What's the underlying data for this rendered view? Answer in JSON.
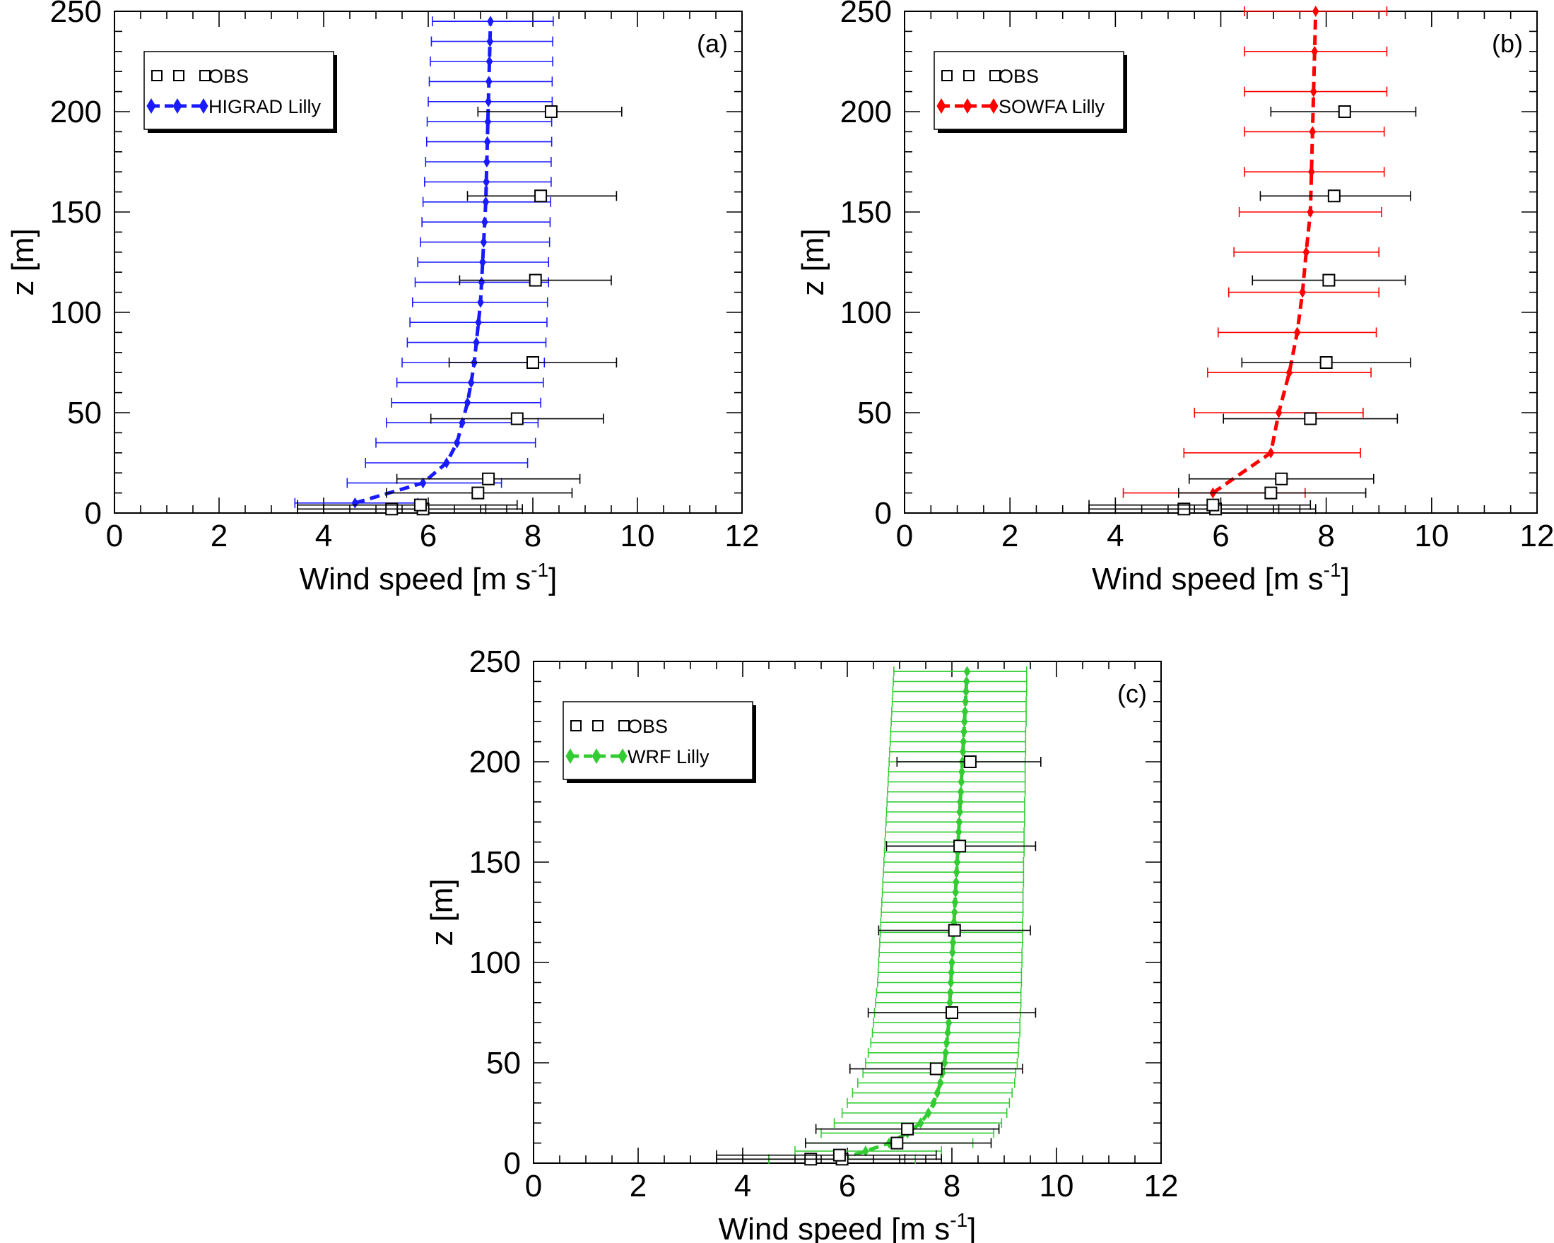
{
  "chart_data": [
    {
      "type": "line",
      "panel_label": "(a)",
      "xlabel": "Wind speed [m s",
      "xlabel_superscript": "-1",
      "xlabel_suffix": "]",
      "ylabel": "z [m]",
      "xlim": [
        0,
        12
      ],
      "ylim": [
        0,
        250
      ],
      "xticks": [
        "0",
        "2",
        "4",
        "6",
        "8",
        "10",
        "12"
      ],
      "yticks": [
        "0",
        "50",
        "100",
        "150",
        "200",
        "250"
      ],
      "grid": false,
      "legend_position": "top-left",
      "model_color": "#1a1aff",
      "obs": {
        "name": "OBS",
        "points": [
          [
            5.3,
            2,
            3.5,
            7.1
          ],
          [
            5.9,
            2,
            4.0,
            7.8
          ],
          [
            5.85,
            4,
            3.5,
            7.7
          ],
          [
            6.95,
            10,
            5.2,
            8.75
          ],
          [
            7.15,
            17,
            5.4,
            8.9
          ],
          [
            7.7,
            47,
            6.05,
            9.35
          ],
          [
            8.0,
            75,
            6.4,
            9.6
          ],
          [
            8.05,
            116,
            6.6,
            9.5
          ],
          [
            8.15,
            158,
            6.75,
            9.6
          ],
          [
            8.35,
            200,
            6.95,
            9.7
          ]
        ]
      },
      "model": {
        "name": "HIGRAD Lilly",
        "points": [
          [
            4.6,
            5,
            3.45,
            5.8
          ],
          [
            5.9,
            15,
            4.45,
            7.4
          ],
          [
            6.35,
            25,
            4.8,
            7.9
          ],
          [
            6.55,
            35,
            5.0,
            8.05
          ],
          [
            6.65,
            45,
            5.2,
            8.1
          ],
          [
            6.75,
            55,
            5.3,
            8.15
          ],
          [
            6.82,
            65,
            5.4,
            8.2
          ],
          [
            6.88,
            75,
            5.5,
            8.22
          ],
          [
            6.92,
            85,
            5.6,
            8.25
          ],
          [
            6.96,
            95,
            5.65,
            8.27
          ],
          [
            7.0,
            105,
            5.7,
            8.28
          ],
          [
            7.02,
            115,
            5.75,
            8.3
          ],
          [
            7.04,
            125,
            5.8,
            8.3
          ],
          [
            7.06,
            135,
            5.85,
            8.32
          ],
          [
            7.08,
            145,
            5.88,
            8.33
          ],
          [
            7.1,
            155,
            5.9,
            8.34
          ],
          [
            7.11,
            165,
            5.93,
            8.35
          ],
          [
            7.12,
            175,
            5.95,
            8.35
          ],
          [
            7.13,
            185,
            5.97,
            8.36
          ],
          [
            7.14,
            195,
            5.98,
            8.36
          ],
          [
            7.15,
            205,
            6.0,
            8.37
          ],
          [
            7.16,
            215,
            6.02,
            8.37
          ],
          [
            7.17,
            225,
            6.04,
            8.38
          ],
          [
            7.18,
            235,
            6.06,
            8.38
          ],
          [
            7.19,
            245,
            6.08,
            8.39
          ]
        ]
      }
    },
    {
      "type": "line",
      "panel_label": "(b)",
      "xlabel": "Wind speed [m s",
      "xlabel_superscript": "-1",
      "xlabel_suffix": "]",
      "ylabel": "z [m]",
      "xlim": [
        0,
        12
      ],
      "ylim": [
        0,
        250
      ],
      "xticks": [
        "0",
        "2",
        "4",
        "6",
        "8",
        "10",
        "12"
      ],
      "yticks": [
        "0",
        "50",
        "100",
        "150",
        "200",
        "250"
      ],
      "grid": false,
      "legend_position": "top-left",
      "model_color": "#ff0000",
      "obs": {
        "name": "OBS",
        "points": [
          [
            5.3,
            2,
            3.5,
            7.1
          ],
          [
            5.9,
            2,
            4.0,
            7.8
          ],
          [
            5.85,
            4,
            3.5,
            7.7
          ],
          [
            6.95,
            10,
            5.2,
            8.75
          ],
          [
            7.15,
            17,
            5.4,
            8.9
          ],
          [
            7.7,
            47,
            6.05,
            9.35
          ],
          [
            8.0,
            75,
            6.4,
            9.6
          ],
          [
            8.05,
            116,
            6.6,
            9.5
          ],
          [
            8.15,
            158,
            6.75,
            9.6
          ],
          [
            8.35,
            200,
            6.95,
            9.7
          ]
        ]
      },
      "model": {
        "name": "SOWFA Lilly",
        "points": [
          [
            5.85,
            10,
            4.15,
            7.6
          ],
          [
            6.95,
            30,
            5.3,
            8.65
          ],
          [
            7.1,
            50,
            5.5,
            8.7
          ],
          [
            7.3,
            70,
            5.75,
            8.85
          ],
          [
            7.45,
            90,
            5.95,
            8.95
          ],
          [
            7.55,
            110,
            6.15,
            9.0
          ],
          [
            7.62,
            130,
            6.25,
            9.0
          ],
          [
            7.7,
            150,
            6.35,
            9.05
          ],
          [
            7.72,
            170,
            6.45,
            9.1
          ],
          [
            7.74,
            190,
            6.45,
            9.1
          ],
          [
            7.76,
            210,
            6.45,
            9.15
          ],
          [
            7.78,
            230,
            6.45,
            9.15
          ],
          [
            7.8,
            250,
            6.45,
            9.15
          ]
        ]
      }
    },
    {
      "type": "line",
      "panel_label": "(c)",
      "xlabel": "Wind speed [m s",
      "xlabel_superscript": "-1",
      "xlabel_suffix": "]",
      "ylabel": "z [m]",
      "xlim": [
        0,
        12
      ],
      "ylim": [
        0,
        250
      ],
      "xticks": [
        "0",
        "2",
        "4",
        "6",
        "8",
        "10",
        "12"
      ],
      "yticks": [
        "0",
        "50",
        "100",
        "150",
        "200",
        "250"
      ],
      "grid": false,
      "legend_position": "top-left",
      "model_color": "#33cc33",
      "obs": {
        "name": "OBS",
        "points": [
          [
            5.3,
            2,
            3.5,
            7.1
          ],
          [
            5.9,
            2,
            4.0,
            7.8
          ],
          [
            5.85,
            4,
            3.5,
            7.7
          ],
          [
            6.95,
            10,
            5.2,
            8.75
          ],
          [
            7.15,
            17,
            5.4,
            8.9
          ],
          [
            7.7,
            47,
            6.05,
            9.35
          ],
          [
            8.0,
            75,
            6.4,
            9.6
          ],
          [
            8.05,
            116,
            6.6,
            9.5
          ],
          [
            8.15,
            158,
            6.75,
            9.6
          ],
          [
            8.35,
            200,
            6.95,
            9.7
          ]
        ]
      },
      "model": {
        "name": "WRF Lilly",
        "points": [
          [
            5.85,
            2,
            4.5,
            7.3
          ],
          [
            6.35,
            6,
            5.0,
            7.8
          ],
          [
            6.8,
            10,
            5.2,
            8.4
          ],
          [
            7.15,
            15,
            5.5,
            8.8
          ],
          [
            7.4,
            20,
            5.75,
            8.95
          ],
          [
            7.55,
            25,
            5.9,
            9.05
          ],
          [
            7.65,
            30,
            6.0,
            9.1
          ],
          [
            7.72,
            35,
            6.1,
            9.15
          ],
          [
            7.78,
            40,
            6.2,
            9.2
          ],
          [
            7.82,
            45,
            6.3,
            9.22
          ],
          [
            7.86,
            50,
            6.35,
            9.25
          ],
          [
            7.88,
            55,
            6.4,
            9.27
          ],
          [
            7.9,
            60,
            6.45,
            9.28
          ],
          [
            7.92,
            65,
            6.48,
            9.3
          ],
          [
            7.94,
            70,
            6.5,
            9.3
          ],
          [
            7.95,
            75,
            6.52,
            9.31
          ],
          [
            7.96,
            80,
            6.54,
            9.32
          ],
          [
            7.97,
            85,
            6.56,
            9.32
          ],
          [
            7.98,
            90,
            6.58,
            9.33
          ],
          [
            7.99,
            95,
            6.59,
            9.33
          ],
          [
            8.0,
            100,
            6.6,
            9.34
          ],
          [
            8.01,
            105,
            6.61,
            9.34
          ],
          [
            8.02,
            110,
            6.62,
            9.35
          ],
          [
            8.03,
            115,
            6.63,
            9.35
          ],
          [
            8.04,
            120,
            6.64,
            9.35
          ],
          [
            8.05,
            125,
            6.65,
            9.36
          ],
          [
            8.06,
            130,
            6.66,
            9.36
          ],
          [
            8.07,
            135,
            6.67,
            9.36
          ],
          [
            8.08,
            140,
            6.68,
            9.37
          ],
          [
            8.09,
            145,
            6.69,
            9.37
          ],
          [
            8.1,
            150,
            6.7,
            9.37
          ],
          [
            8.11,
            155,
            6.71,
            9.38
          ],
          [
            8.12,
            160,
            6.72,
            9.38
          ],
          [
            8.13,
            165,
            6.73,
            9.38
          ],
          [
            8.14,
            170,
            6.74,
            9.39
          ],
          [
            8.15,
            175,
            6.75,
            9.39
          ],
          [
            8.16,
            180,
            6.76,
            9.39
          ],
          [
            8.17,
            185,
            6.77,
            9.4
          ],
          [
            8.18,
            190,
            6.78,
            9.4
          ],
          [
            8.19,
            195,
            6.79,
            9.4
          ],
          [
            8.2,
            200,
            6.8,
            9.4
          ],
          [
            8.21,
            205,
            6.81,
            9.41
          ],
          [
            8.22,
            210,
            6.82,
            9.41
          ],
          [
            8.23,
            215,
            6.83,
            9.41
          ],
          [
            8.24,
            220,
            6.84,
            9.42
          ],
          [
            8.25,
            225,
            6.85,
            9.42
          ],
          [
            8.26,
            230,
            6.86,
            9.42
          ],
          [
            8.27,
            235,
            6.87,
            9.43
          ],
          [
            8.28,
            240,
            6.88,
            9.43
          ],
          [
            8.29,
            245,
            6.89,
            9.43
          ]
        ]
      }
    }
  ]
}
